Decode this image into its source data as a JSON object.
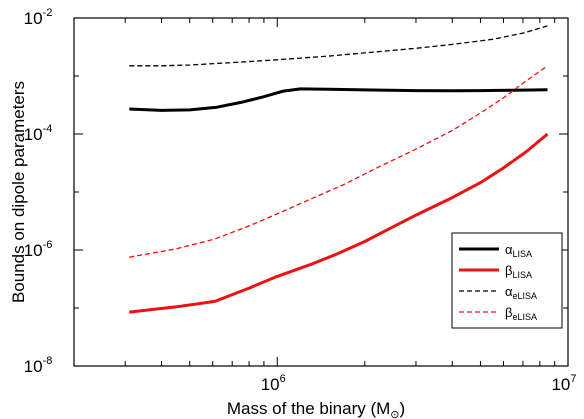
{
  "chart_data": {
    "type": "line",
    "title": "",
    "xlabel": "Mass of the binary (M⊙)",
    "xlabel_main": "Mass of the binary (M",
    "xlabel_sub": "⊙",
    "xlabel_close": ")",
    "ylabel": "Bounds on dipole parameters",
    "xscale": "log",
    "yscale": "log",
    "xlim": [
      200000,
      10000000
    ],
    "ylim": [
      1e-08,
      0.01
    ],
    "grid": false,
    "legend_position": "lower-right",
    "x_ticks": [
      {
        "value": 1000000,
        "base": "10",
        "exp": "6"
      },
      {
        "value": 10000000,
        "base": "10",
        "exp": "7"
      }
    ],
    "y_ticks": [
      {
        "value": 1e-08,
        "base": "10",
        "exp": "-8"
      },
      {
        "value": 1e-06,
        "base": "10",
        "exp": "-6"
      },
      {
        "value": 0.0001,
        "base": "10",
        "exp": "-4"
      },
      {
        "value": 0.01,
        "base": "10",
        "exp": "-2"
      }
    ],
    "series": [
      {
        "name": "αLISA",
        "symbol": "α",
        "sub": "LISA",
        "color": "#000000",
        "dash": "solid",
        "width": 3,
        "points": [
          [
            310000,
            0.00027
          ],
          [
            400000,
            0.000255
          ],
          [
            500000,
            0.00026
          ],
          [
            620000,
            0.00029
          ],
          [
            750000,
            0.00035
          ],
          [
            900000,
            0.00044
          ],
          [
            1050000,
            0.00055
          ],
          [
            1200000,
            0.0006
          ],
          [
            1500000,
            0.00059
          ],
          [
            2000000,
            0.000575
          ],
          [
            3000000,
            0.00056
          ],
          [
            4000000,
            0.000555
          ],
          [
            5000000,
            0.00056
          ],
          [
            6500000,
            0.00057
          ],
          [
            8500000,
            0.00058
          ]
        ]
      },
      {
        "name": "βLISA",
        "symbol": "β",
        "sub": "LISA",
        "color": "#ee1111",
        "dash": "solid",
        "width": 3,
        "points": [
          [
            310000,
            8.5e-08
          ],
          [
            450000,
            1.05e-07
          ],
          [
            610000,
            1.3e-07
          ],
          [
            800000,
            2.2e-07
          ],
          [
            1000000,
            3.5e-07
          ],
          [
            1300000,
            5.6e-07
          ],
          [
            1600000,
            8.5e-07
          ],
          [
            2000000,
            1.4e-06
          ],
          [
            2500000,
            2.5e-06
          ],
          [
            3000000,
            4e-06
          ],
          [
            4000000,
            8e-06
          ],
          [
            5000000,
            1.45e-05
          ],
          [
            6000000,
            2.6e-05
          ],
          [
            7200000,
            5e-05
          ],
          [
            8500000,
            0.0001
          ]
        ]
      },
      {
        "name": "αeLISA",
        "symbol": "α",
        "sub": "eLISA",
        "color": "#000000",
        "dash": "dashed",
        "width": 1.3,
        "points": [
          [
            310000,
            0.0015
          ],
          [
            400000,
            0.0015
          ],
          [
            500000,
            0.00155
          ],
          [
            700000,
            0.0017
          ],
          [
            1000000,
            0.0019
          ],
          [
            1500000,
            0.0022
          ],
          [
            2000000,
            0.0025
          ],
          [
            3000000,
            0.003
          ],
          [
            4000000,
            0.0035
          ],
          [
            5500000,
            0.0043
          ],
          [
            7000000,
            0.0055
          ],
          [
            8500000,
            0.0073
          ]
        ]
      },
      {
        "name": "βeLISA",
        "symbol": "β",
        "sub": "eLISA",
        "color": "#ee1111",
        "dash": "dashed",
        "width": 1.3,
        "points": [
          [
            310000,
            7.5e-07
          ],
          [
            450000,
            1.05e-06
          ],
          [
            610000,
            1.55e-06
          ],
          [
            800000,
            2.6e-06
          ],
          [
            1000000,
            4.2e-06
          ],
          [
            1300000,
            7.5e-06
          ],
          [
            1700000,
            1.35e-05
          ],
          [
            2200000,
            2.6e-05
          ],
          [
            3000000,
            5.5e-05
          ],
          [
            4000000,
            0.000115
          ],
          [
            5000000,
            0.00023
          ],
          [
            6000000,
            0.00042
          ],
          [
            7000000,
            0.00075
          ],
          [
            8500000,
            0.0015
          ]
        ]
      }
    ]
  }
}
